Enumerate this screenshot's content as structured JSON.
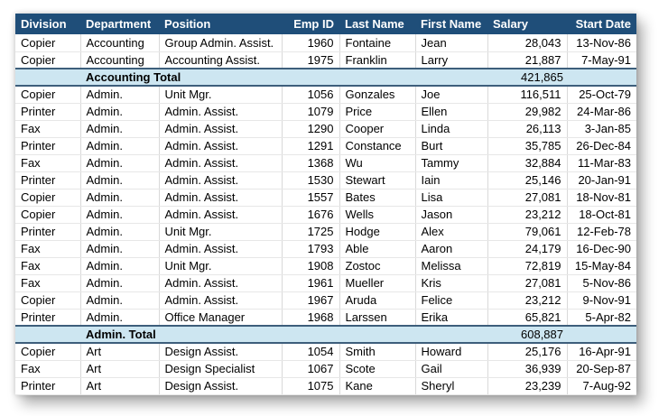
{
  "window": {
    "background": "#FFFFFF"
  },
  "table": {
    "columns": [
      {
        "label": "Division"
      },
      {
        "label": "Department"
      },
      {
        "label": "Position"
      },
      {
        "label": "Emp ID"
      },
      {
        "label": "Last Name"
      },
      {
        "label": "First Name"
      },
      {
        "label": "Salary"
      },
      {
        "label": "Start Date"
      }
    ],
    "groups": [
      {
        "rows": [
          {
            "division": "Copier",
            "department": "Accounting",
            "position": "Group Admin. Assist.",
            "emp_id": "1960",
            "last_name": "Fontaine",
            "first_name": "Jean",
            "salary": "28,043",
            "start_date": "13-Nov-86"
          },
          {
            "division": "Copier",
            "department": "Accounting",
            "position": "Accounting Assist.",
            "emp_id": "1975",
            "last_name": "Franklin",
            "first_name": "Larry",
            "salary": "21,887",
            "start_date": "7-May-91"
          }
        ],
        "total": {
          "label": "Accounting Total",
          "value": "421,865"
        }
      },
      {
        "rows": [
          {
            "division": "Copier",
            "department": "Admin.",
            "position": "Unit Mgr.",
            "emp_id": "1056",
            "last_name": "Gonzales",
            "first_name": "Joe",
            "salary": "116,511",
            "start_date": "25-Oct-79"
          },
          {
            "division": "Printer",
            "department": "Admin.",
            "position": "Admin. Assist.",
            "emp_id": "1079",
            "last_name": "Price",
            "first_name": "Ellen",
            "salary": "29,982",
            "start_date": "24-Mar-86"
          },
          {
            "division": "Fax",
            "department": "Admin.",
            "position": "Admin. Assist.",
            "emp_id": "1290",
            "last_name": "Cooper",
            "first_name": "Linda",
            "salary": "26,113",
            "start_date": "3-Jan-85"
          },
          {
            "division": "Printer",
            "department": "Admin.",
            "position": "Admin. Assist.",
            "emp_id": "1291",
            "last_name": "Constance",
            "first_name": "Burt",
            "salary": "35,785",
            "start_date": "26-Dec-84"
          },
          {
            "division": "Fax",
            "department": "Admin.",
            "position": "Admin. Assist.",
            "emp_id": "1368",
            "last_name": "Wu",
            "first_name": "Tammy",
            "salary": "32,884",
            "start_date": "11-Mar-83"
          },
          {
            "division": "Printer",
            "department": "Admin.",
            "position": "Admin. Assist.",
            "emp_id": "1530",
            "last_name": "Stewart",
            "first_name": "Iain",
            "salary": "25,146",
            "start_date": "20-Jan-91"
          },
          {
            "division": "Copier",
            "department": "Admin.",
            "position": "Admin. Assist.",
            "emp_id": "1557",
            "last_name": "Bates",
            "first_name": "Lisa",
            "salary": "27,081",
            "start_date": "18-Nov-81"
          },
          {
            "division": "Copier",
            "department": "Admin.",
            "position": "Admin. Assist.",
            "emp_id": "1676",
            "last_name": "Wells",
            "first_name": "Jason",
            "salary": "23,212",
            "start_date": "18-Oct-81"
          },
          {
            "division": "Printer",
            "department": "Admin.",
            "position": "Unit Mgr.",
            "emp_id": "1725",
            "last_name": "Hodge",
            "first_name": "Alex",
            "salary": "79,061",
            "start_date": "12-Feb-78"
          },
          {
            "division": "Fax",
            "department": "Admin.",
            "position": "Admin. Assist.",
            "emp_id": "1793",
            "last_name": "Able",
            "first_name": "Aaron",
            "salary": "24,179",
            "start_date": "16-Dec-90"
          },
          {
            "division": "Fax",
            "department": "Admin.",
            "position": "Unit Mgr.",
            "emp_id": "1908",
            "last_name": "Zostoc",
            "first_name": "Melissa",
            "salary": "72,819",
            "start_date": "15-May-84"
          },
          {
            "division": "Fax",
            "department": "Admin.",
            "position": "Admin. Assist.",
            "emp_id": "1961",
            "last_name": "Mueller",
            "first_name": "Kris",
            "salary": "27,081",
            "start_date": "5-Nov-86"
          },
          {
            "division": "Copier",
            "department": "Admin.",
            "position": "Admin. Assist.",
            "emp_id": "1967",
            "last_name": "Aruda",
            "first_name": "Felice",
            "salary": "23,212",
            "start_date": "9-Nov-91"
          },
          {
            "division": "Printer",
            "department": "Admin.",
            "position": "Office Manager",
            "emp_id": "1968",
            "last_name": "Larssen",
            "first_name": "Erika",
            "salary": "65,821",
            "start_date": "5-Apr-82"
          }
        ],
        "total": {
          "label": "Admin. Total",
          "value": "608,887"
        }
      },
      {
        "rows": [
          {
            "division": "Copier",
            "department": "Art",
            "position": "Design Assist.",
            "emp_id": "1054",
            "last_name": "Smith",
            "first_name": "Howard",
            "salary": "25,176",
            "start_date": "16-Apr-91"
          },
          {
            "division": "Fax",
            "department": "Art",
            "position": "Design Specialist",
            "emp_id": "1067",
            "last_name": "Scote",
            "first_name": "Gail",
            "salary": "36,939",
            "start_date": "20-Sep-87"
          },
          {
            "division": "Printer",
            "department": "Art",
            "position": "Design Assist.",
            "emp_id": "1075",
            "last_name": "Kane",
            "first_name": "Sheryl",
            "salary": "23,239",
            "start_date": "7-Aug-92"
          }
        ],
        "total": null
      }
    ],
    "colors": {
      "header_bg": "#1F4E79",
      "header_text": "#FFFFFF",
      "total_bg": "#CDE6F1",
      "section_border": "#3D5E7B",
      "gridline": "#D9D9D9",
      "row_line": "#E7E7E7",
      "text": "#000000"
    }
  }
}
